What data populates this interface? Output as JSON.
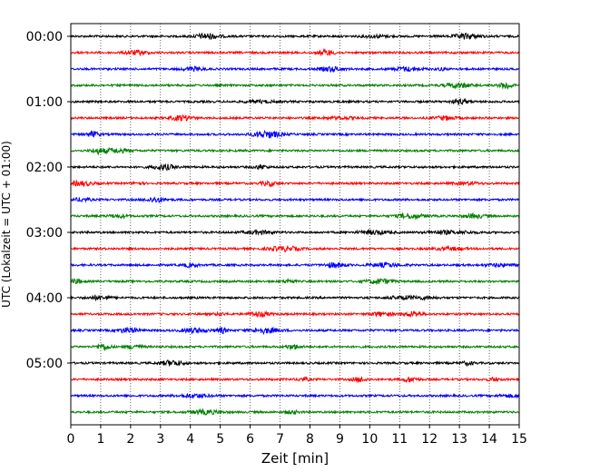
{
  "chart_data": {
    "type": "line",
    "title": "",
    "xlabel": "Zeit  [min]",
    "ylabel": "UTC (Lokalzeit = UTC + 01:00)",
    "xlim": [
      0,
      15
    ],
    "x_ticks": [
      "0",
      "1",
      "2",
      "3",
      "4",
      "5",
      "6",
      "7",
      "8",
      "9",
      "10",
      "11",
      "12",
      "13",
      "14",
      "15"
    ],
    "y_ticks": [
      "00:00",
      "01:00",
      "02:00",
      "03:00",
      "04:00",
      "05:00"
    ],
    "grid": "vertical dotted",
    "trace_colors": [
      "#000000",
      "#ff0000",
      "#0000ff",
      "#007f00"
    ],
    "traces": [
      {
        "start": "00:00"
      },
      {
        "start": "00:15"
      },
      {
        "start": "00:30"
      },
      {
        "start": "00:45"
      },
      {
        "start": "01:00"
      },
      {
        "start": "01:15"
      },
      {
        "start": "01:30"
      },
      {
        "start": "01:45"
      },
      {
        "start": "02:00"
      },
      {
        "start": "02:15"
      },
      {
        "start": "02:30"
      },
      {
        "start": "02:45"
      },
      {
        "start": "03:00"
      },
      {
        "start": "03:15"
      },
      {
        "start": "03:30"
      },
      {
        "start": "03:45"
      },
      {
        "start": "04:00"
      },
      {
        "start": "04:15"
      },
      {
        "start": "04:30"
      },
      {
        "start": "04:45"
      },
      {
        "start": "05:00"
      },
      {
        "start": "05:15"
      },
      {
        "start": "05:30"
      },
      {
        "start": "05:45"
      }
    ]
  }
}
